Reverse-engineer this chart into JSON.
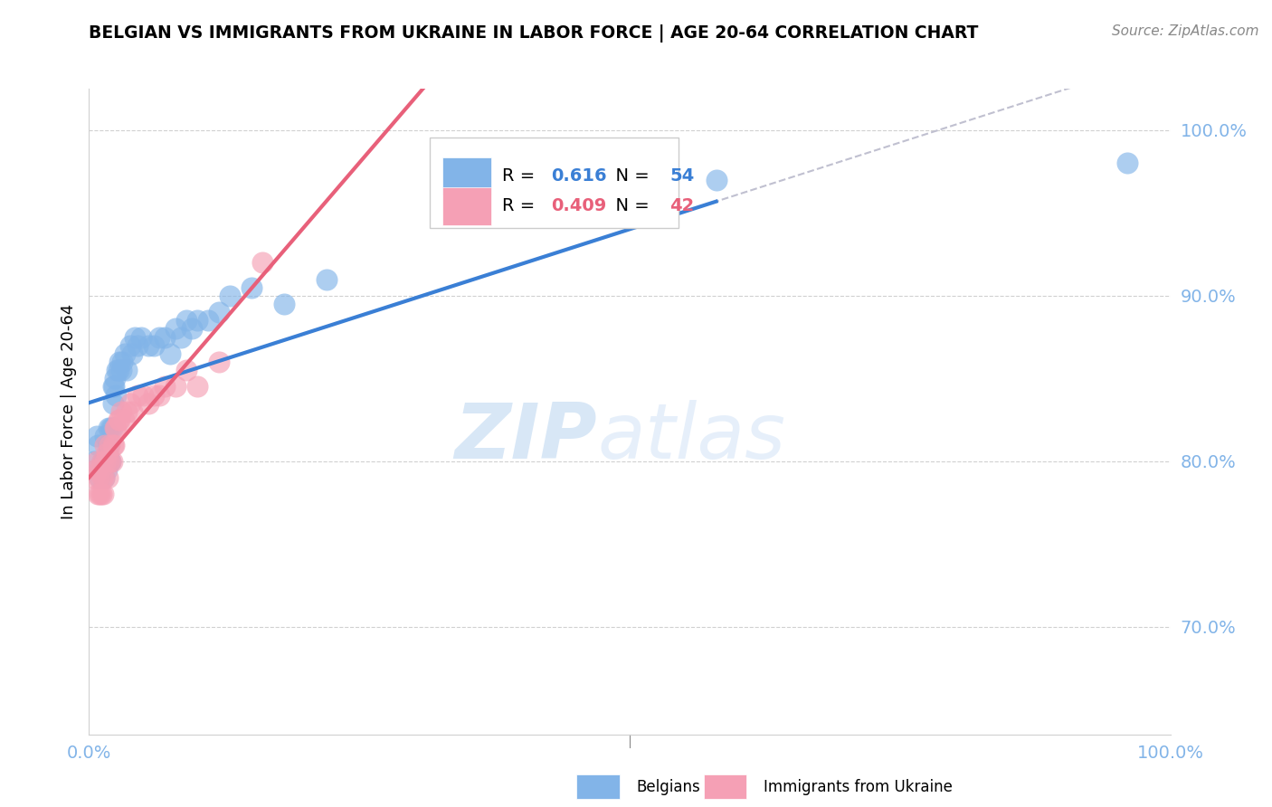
{
  "title": "BELGIAN VS IMMIGRANTS FROM UKRAINE IN LABOR FORCE | AGE 20-64 CORRELATION CHART",
  "source": "Source: ZipAtlas.com",
  "ylabel": "In Labor Force | Age 20-64",
  "xlim": [
    0.0,
    1.0
  ],
  "ylim": [
    0.635,
    1.025
  ],
  "yticks": [
    0.7,
    0.8,
    0.9,
    1.0
  ],
  "ytick_labels": [
    "70.0%",
    "80.0%",
    "90.0%",
    "100.0%"
  ],
  "legend_r1_val": "0.616",
  "legend_n1_val": "54",
  "legend_r2_val": "0.409",
  "legend_n2_val": "42",
  "belgian_color": "#82b4e8",
  "ukraine_color": "#f5a0b5",
  "belgian_line_color": "#3a7fd5",
  "ukraine_line_color": "#e8607a",
  "watermark_zip": "ZIP",
  "watermark_atlas": "atlas",
  "background_color": "#ffffff",
  "belgian_x": [
    0.005,
    0.007,
    0.008,
    0.01,
    0.011,
    0.012,
    0.013,
    0.014,
    0.015,
    0.015,
    0.016,
    0.017,
    0.017,
    0.018,
    0.018,
    0.019,
    0.02,
    0.02,
    0.021,
    0.022,
    0.022,
    0.023,
    0.024,
    0.025,
    0.026,
    0.027,
    0.028,
    0.03,
    0.031,
    0.033,
    0.035,
    0.038,
    0.04,
    0.042,
    0.045,
    0.048,
    0.055,
    0.06,
    0.065,
    0.07,
    0.075,
    0.08,
    0.085,
    0.09,
    0.095,
    0.1,
    0.11,
    0.12,
    0.13,
    0.15,
    0.18,
    0.22,
    0.58,
    0.96
  ],
  "belgian_y": [
    0.8,
    0.815,
    0.81,
    0.79,
    0.795,
    0.8,
    0.8,
    0.79,
    0.8,
    0.815,
    0.795,
    0.8,
    0.805,
    0.81,
    0.82,
    0.8,
    0.8,
    0.82,
    0.82,
    0.835,
    0.845,
    0.845,
    0.85,
    0.84,
    0.855,
    0.855,
    0.86,
    0.855,
    0.86,
    0.865,
    0.855,
    0.87,
    0.865,
    0.875,
    0.87,
    0.875,
    0.87,
    0.87,
    0.875,
    0.875,
    0.865,
    0.88,
    0.875,
    0.885,
    0.88,
    0.885,
    0.885,
    0.89,
    0.9,
    0.905,
    0.895,
    0.91,
    0.97,
    0.98
  ],
  "ukraine_x": [
    0.005,
    0.006,
    0.007,
    0.008,
    0.009,
    0.01,
    0.01,
    0.011,
    0.012,
    0.012,
    0.013,
    0.014,
    0.015,
    0.015,
    0.016,
    0.017,
    0.018,
    0.019,
    0.02,
    0.021,
    0.022,
    0.023,
    0.024,
    0.025,
    0.027,
    0.028,
    0.03,
    0.032,
    0.035,
    0.038,
    0.04,
    0.045,
    0.05,
    0.055,
    0.06,
    0.065,
    0.07,
    0.08,
    0.09,
    0.1,
    0.12,
    0.16
  ],
  "ukraine_y": [
    0.79,
    0.795,
    0.8,
    0.78,
    0.79,
    0.78,
    0.795,
    0.78,
    0.79,
    0.8,
    0.78,
    0.79,
    0.8,
    0.81,
    0.805,
    0.79,
    0.8,
    0.81,
    0.8,
    0.8,
    0.81,
    0.81,
    0.82,
    0.82,
    0.825,
    0.825,
    0.83,
    0.825,
    0.83,
    0.835,
    0.83,
    0.84,
    0.84,
    0.835,
    0.84,
    0.84,
    0.845,
    0.845,
    0.855,
    0.845,
    0.86,
    0.92
  ]
}
